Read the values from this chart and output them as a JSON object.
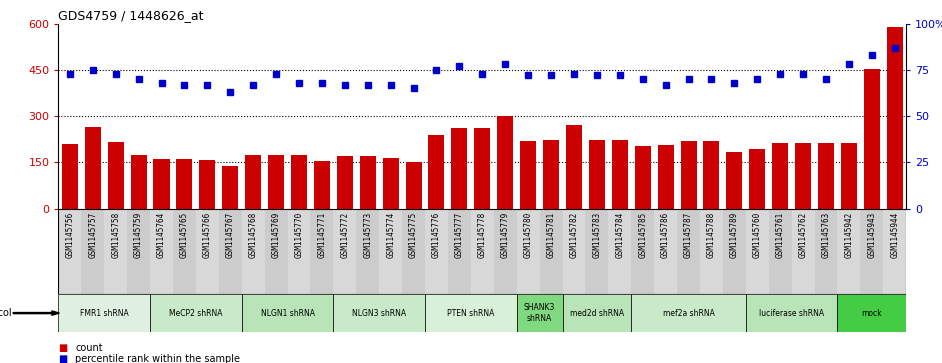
{
  "title": "GDS4759 / 1448626_at",
  "samples": [
    "GSM1145756",
    "GSM1145757",
    "GSM1145758",
    "GSM1145759",
    "GSM1145764",
    "GSM1145765",
    "GSM1145766",
    "GSM1145767",
    "GSM1145768",
    "GSM1145769",
    "GSM1145770",
    "GSM1145771",
    "GSM1145772",
    "GSM1145773",
    "GSM1145774",
    "GSM1145775",
    "GSM1145776",
    "GSM1145777",
    "GSM1145778",
    "GSM1145779",
    "GSM1145780",
    "GSM1145781",
    "GSM1145782",
    "GSM1145783",
    "GSM1145784",
    "GSM1145785",
    "GSM1145786",
    "GSM1145787",
    "GSM1145788",
    "GSM1145789",
    "GSM1145760",
    "GSM1145761",
    "GSM1145762",
    "GSM1145763",
    "GSM1145942",
    "GSM1145943",
    "GSM1145944"
  ],
  "counts": [
    210,
    265,
    215,
    175,
    162,
    162,
    158,
    138,
    175,
    175,
    173,
    155,
    170,
    170,
    163,
    153,
    240,
    263,
    263,
    302,
    218,
    223,
    272,
    223,
    223,
    203,
    208,
    218,
    218,
    183,
    193,
    213,
    213,
    213,
    213,
    453,
    590
  ],
  "percentiles": [
    73,
    75,
    73,
    70,
    68,
    67,
    67,
    63,
    67,
    73,
    68,
    68,
    67,
    67,
    67,
    65,
    75,
    77,
    73,
    78,
    72,
    72,
    73,
    72,
    72,
    70,
    67,
    70,
    70,
    68,
    70,
    73,
    73,
    70,
    78,
    83,
    87
  ],
  "groups": [
    {
      "label": "FMR1 shRNA",
      "start": 0,
      "end": 4,
      "color": "#e0f0e0"
    },
    {
      "label": "MeCP2 shRNA",
      "start": 4,
      "end": 8,
      "color": "#c8eac8"
    },
    {
      "label": "NLGN1 shRNA",
      "start": 8,
      "end": 12,
      "color": "#b8e4b8"
    },
    {
      "label": "NLGN3 shRNA",
      "start": 12,
      "end": 16,
      "color": "#c8eac8"
    },
    {
      "label": "PTEN shRNA",
      "start": 16,
      "end": 20,
      "color": "#d8f0d8"
    },
    {
      "label": "SHANK3\nshRNA",
      "start": 20,
      "end": 22,
      "color": "#80d880"
    },
    {
      "label": "med2d shRNA",
      "start": 22,
      "end": 25,
      "color": "#b8e4b8"
    },
    {
      "label": "mef2a shRNA",
      "start": 25,
      "end": 30,
      "color": "#c8eac8"
    },
    {
      "label": "luciferase shRNA",
      "start": 30,
      "end": 34,
      "color": "#b8e4b8"
    },
    {
      "label": "mock",
      "start": 34,
      "end": 37,
      "color": "#44cc44"
    }
  ],
  "bar_color": "#cc0000",
  "dot_color": "#0000cc",
  "ylim_left": [
    0,
    600
  ],
  "ylim_right": [
    0,
    100
  ],
  "yticks_left": [
    0,
    150,
    300,
    450,
    600
  ],
  "yticks_right": [
    0,
    25,
    50,
    75,
    100
  ],
  "xtick_bg": "#d8d8d8",
  "protocol_bg": "#d0d0d0"
}
